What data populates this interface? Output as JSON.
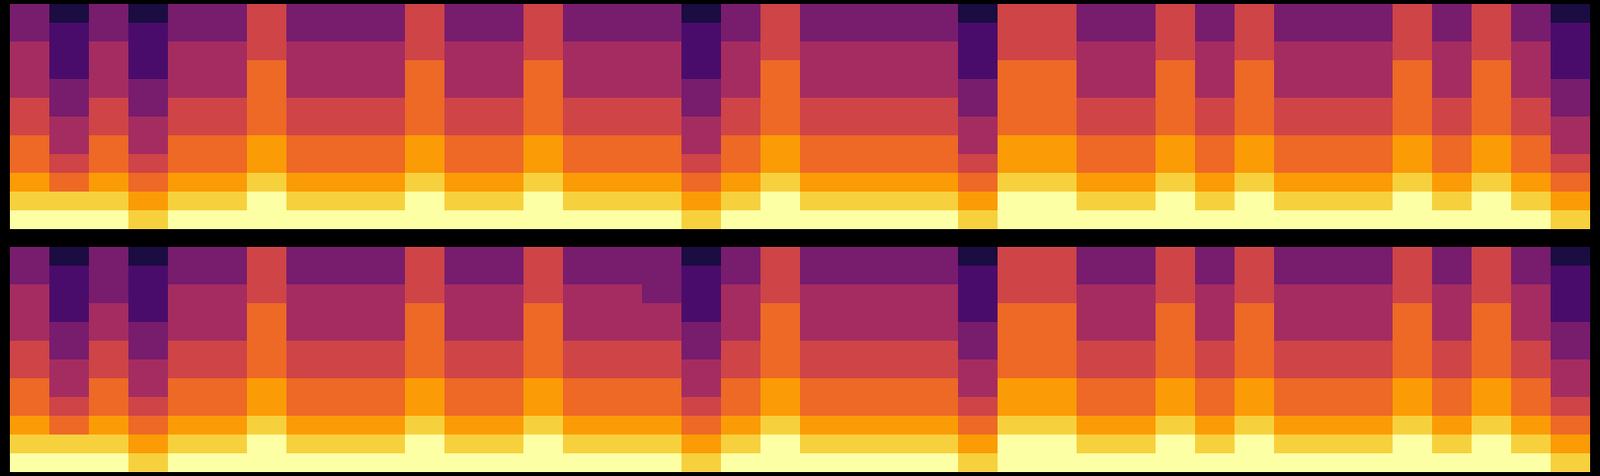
{
  "chart_data": [
    {
      "type": "heatmap",
      "tick_labels": false,
      "color": "inferno",
      "color_range": [
        0,
        9
      ],
      "cells": [
        [
          9,
          9,
          9,
          8,
          9,
          9,
          9,
          9,
          9,
          9,
          9,
          9,
          9,
          9,
          9,
          9,
          9,
          8,
          9,
          9,
          9,
          9,
          9,
          9,
          8,
          9,
          9,
          9,
          9,
          9,
          9,
          9,
          9,
          9,
          9,
          9,
          9,
          9,
          9,
          8
        ],
        [
          8,
          8,
          8,
          7,
          8,
          8,
          9,
          8,
          8,
          8,
          9,
          8,
          8,
          9,
          8,
          8,
          8,
          7,
          8,
          9,
          8,
          8,
          8,
          8,
          7,
          9,
          9,
          8,
          8,
          9,
          8,
          9,
          8,
          8,
          8,
          9,
          8,
          9,
          8,
          7
        ],
        [
          7,
          6,
          7,
          6,
          7,
          7,
          8,
          7,
          7,
          7,
          8,
          7,
          7,
          8,
          7,
          7,
          7,
          6,
          7,
          8,
          7,
          7,
          7,
          7,
          6,
          8,
          8,
          7,
          7,
          8,
          7,
          8,
          7,
          7,
          7,
          8,
          7,
          8,
          7,
          6
        ],
        [
          6,
          5,
          6,
          5,
          6,
          6,
          7,
          6,
          6,
          6,
          7,
          6,
          6,
          7,
          6,
          6,
          6,
          5,
          6,
          7,
          6,
          6,
          6,
          6,
          5,
          7,
          7,
          6,
          6,
          7,
          6,
          7,
          6,
          6,
          6,
          7,
          6,
          7,
          6,
          5
        ],
        [
          6,
          4,
          6,
          4,
          6,
          6,
          7,
          6,
          6,
          6,
          7,
          6,
          6,
          7,
          6,
          6,
          6,
          4,
          6,
          7,
          6,
          6,
          6,
          6,
          4,
          7,
          7,
          6,
          6,
          7,
          6,
          7,
          6,
          6,
          6,
          7,
          6,
          7,
          6,
          4
        ],
        [
          5,
          4,
          5,
          4,
          5,
          5,
          6,
          5,
          5,
          5,
          6,
          5,
          5,
          6,
          5,
          5,
          5,
          4,
          5,
          6,
          5,
          5,
          5,
          5,
          4,
          6,
          6,
          5,
          5,
          6,
          5,
          6,
          5,
          5,
          5,
          6,
          5,
          6,
          5,
          4
        ],
        [
          5,
          3,
          5,
          3,
          5,
          5,
          6,
          5,
          5,
          5,
          6,
          5,
          5,
          6,
          5,
          5,
          5,
          3,
          5,
          6,
          5,
          5,
          5,
          5,
          3,
          6,
          6,
          5,
          5,
          6,
          5,
          6,
          5,
          5,
          5,
          6,
          5,
          6,
          5,
          3
        ],
        [
          4,
          3,
          4,
          3,
          4,
          4,
          6,
          4,
          4,
          4,
          6,
          4,
          4,
          6,
          4,
          4,
          4,
          3,
          4,
          6,
          4,
          4,
          4,
          4,
          3,
          6,
          6,
          4,
          4,
          6,
          4,
          6,
          4,
          4,
          4,
          6,
          4,
          6,
          4,
          3
        ],
        [
          4,
          2,
          4,
          2,
          4,
          4,
          6,
          4,
          4,
          4,
          6,
          4,
          4,
          6,
          4,
          4,
          4,
          2,
          4,
          6,
          4,
          4,
          4,
          4,
          2,
          6,
          6,
          4,
          4,
          6,
          4,
          6,
          4,
          4,
          4,
          6,
          4,
          6,
          4,
          2
        ],
        [
          4,
          2,
          4,
          2,
          4,
          4,
          5,
          4,
          4,
          4,
          5,
          4,
          4,
          5,
          4,
          4,
          4,
          2,
          4,
          5,
          4,
          4,
          4,
          4,
          2,
          5,
          5,
          4,
          4,
          5,
          4,
          5,
          4,
          4,
          4,
          5,
          4,
          5,
          4,
          2
        ],
        [
          3,
          2,
          3,
          2,
          3,
          3,
          5,
          3,
          3,
          3,
          5,
          3,
          3,
          5,
          3,
          3,
          3,
          2,
          3,
          5,
          3,
          3,
          3,
          3,
          2,
          5,
          5,
          3,
          3,
          5,
          3,
          5,
          3,
          3,
          3,
          5,
          3,
          5,
          3,
          2
        ],
        [
          3,
          1,
          3,
          1,
          3,
          3,
          5,
          3,
          3,
          3,
          5,
          3,
          3,
          5,
          3,
          3,
          3,
          1,
          3,
          5,
          3,
          3,
          3,
          3,
          1,
          5,
          5,
          3,
          3,
          5,
          3,
          5,
          3,
          3,
          3,
          5,
          3,
          5,
          3,
          1
        ]
      ]
    },
    {
      "type": "heatmap",
      "tick_labels": false,
      "color": "inferno",
      "color_range": [
        0,
        9
      ],
      "cells": [
        [
          9,
          9,
          9,
          8,
          9,
          9,
          9,
          9,
          9,
          9,
          9,
          9,
          9,
          9,
          9,
          9,
          9,
          8,
          9,
          9,
          9,
          9,
          9,
          9,
          8,
          9,
          9,
          9,
          9,
          9,
          9,
          9,
          9,
          9,
          9,
          9,
          9,
          9,
          9,
          8
        ],
        [
          8,
          8,
          8,
          7,
          8,
          8,
          9,
          8,
          8,
          8,
          9,
          8,
          8,
          9,
          8,
          8,
          8,
          7,
          8,
          9,
          8,
          8,
          8,
          8,
          7,
          9,
          9,
          8,
          8,
          9,
          8,
          9,
          8,
          8,
          8,
          9,
          8,
          9,
          8,
          7
        ],
        [
          7,
          6,
          7,
          6,
          7,
          7,
          8,
          7,
          7,
          7,
          8,
          7,
          7,
          8,
          7,
          7,
          7,
          6,
          7,
          8,
          7,
          7,
          7,
          7,
          6,
          8,
          8,
          7,
          7,
          8,
          7,
          8,
          7,
          7,
          7,
          8,
          7,
          8,
          7,
          6
        ],
        [
          6,
          5,
          6,
          5,
          6,
          6,
          7,
          6,
          6,
          6,
          7,
          6,
          6,
          7,
          6,
          6,
          6,
          5,
          6,
          7,
          6,
          6,
          6,
          6,
          5,
          7,
          7,
          6,
          6,
          7,
          6,
          7,
          6,
          6,
          6,
          7,
          6,
          7,
          6,
          5
        ],
        [
          6,
          4,
          6,
          4,
          6,
          6,
          7,
          6,
          6,
          6,
          7,
          6,
          6,
          7,
          6,
          6,
          6,
          4,
          6,
          7,
          6,
          6,
          6,
          6,
          4,
          7,
          7,
          6,
          6,
          7,
          6,
          7,
          6,
          6,
          6,
          7,
          6,
          7,
          6,
          4
        ],
        [
          5,
          4,
          5,
          4,
          5,
          5,
          6,
          5,
          5,
          5,
          6,
          5,
          5,
          6,
          5,
          5,
          5,
          4,
          5,
          6,
          5,
          5,
          5,
          5,
          4,
          6,
          6,
          5,
          5,
          6,
          5,
          6,
          5,
          5,
          5,
          6,
          5,
          6,
          5,
          4
        ],
        [
          5,
          3,
          5,
          3,
          5,
          5,
          6,
          5,
          5,
          5,
          6,
          5,
          5,
          6,
          5,
          5,
          5,
          3,
          5,
          6,
          5,
          5,
          5,
          5,
          3,
          6,
          6,
          5,
          5,
          6,
          5,
          6,
          5,
          5,
          5,
          6,
          5,
          6,
          5,
          3
        ],
        [
          4,
          3,
          4,
          3,
          4,
          4,
          6,
          4,
          4,
          4,
          6,
          4,
          4,
          6,
          4,
          4,
          4,
          3,
          4,
          6,
          4,
          4,
          4,
          4,
          3,
          6,
          6,
          4,
          4,
          6,
          4,
          6,
          4,
          4,
          4,
          6,
          4,
          6,
          4,
          3
        ],
        [
          4,
          2,
          4,
          2,
          4,
          4,
          6,
          4,
          4,
          4,
          6,
          4,
          4,
          6,
          4,
          4,
          4,
          2,
          4,
          6,
          4,
          4,
          4,
          4,
          2,
          6,
          6,
          4,
          4,
          6,
          4,
          6,
          4,
          4,
          4,
          6,
          4,
          6,
          4,
          2
        ],
        [
          4,
          2,
          3,
          2,
          4,
          4,
          5,
          4,
          4,
          4,
          5,
          4,
          4,
          5,
          4,
          4,
          3,
          2,
          4,
          5,
          4,
          4,
          4,
          4,
          2,
          5,
          5,
          4,
          4,
          5,
          4,
          5,
          4,
          4,
          4,
          5,
          4,
          5,
          4,
          2
        ],
        [
          3,
          2,
          3,
          2,
          3,
          3,
          5,
          3,
          3,
          3,
          5,
          3,
          3,
          5,
          3,
          3,
          3,
          2,
          3,
          5,
          3,
          3,
          3,
          3,
          2,
          5,
          5,
          3,
          3,
          5,
          3,
          5,
          3,
          3,
          3,
          5,
          3,
          5,
          3,
          2
        ],
        [
          3,
          1,
          3,
          1,
          3,
          3,
          5,
          3,
          3,
          3,
          5,
          3,
          3,
          5,
          3,
          3,
          3,
          1,
          3,
          5,
          3,
          3,
          3,
          3,
          1,
          5,
          5,
          3,
          3,
          5,
          3,
          5,
          3,
          3,
          3,
          5,
          3,
          5,
          3,
          1
        ]
      ]
    }
  ]
}
